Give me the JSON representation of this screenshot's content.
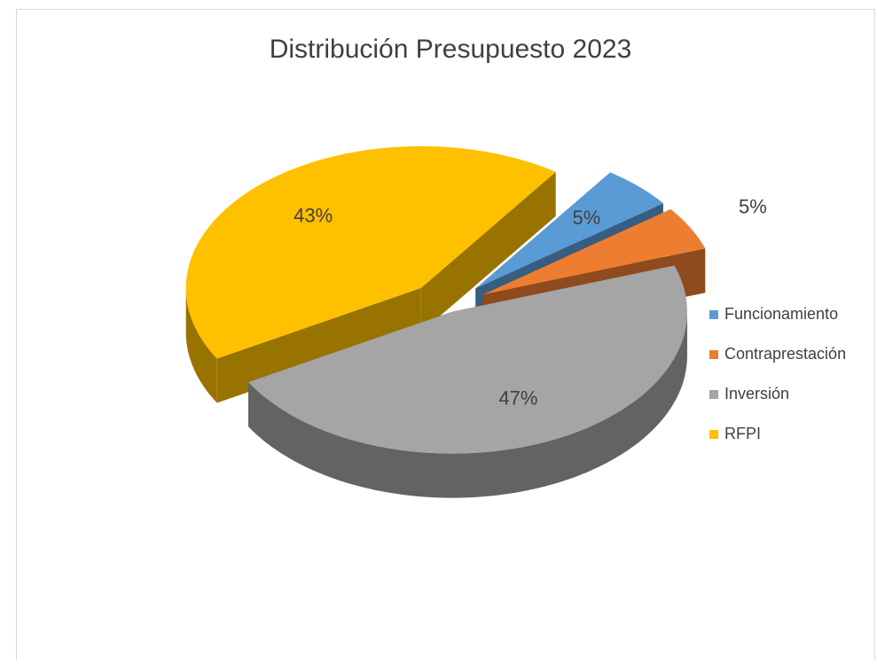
{
  "chart_data": {
    "type": "pie",
    "title": "Distribución Presupuesto 2023",
    "categories": [
      "Funcionamiento",
      "Contraprestación",
      "Inversión",
      "RFPI"
    ],
    "values": [
      5,
      5,
      47,
      43
    ],
    "value_labels": [
      "5%",
      "5%",
      "47%",
      "43%"
    ],
    "colors": [
      "#5b9bd5",
      "#ed7d31",
      "#a5a5a5",
      "#ffc000"
    ],
    "legend": "right"
  }
}
